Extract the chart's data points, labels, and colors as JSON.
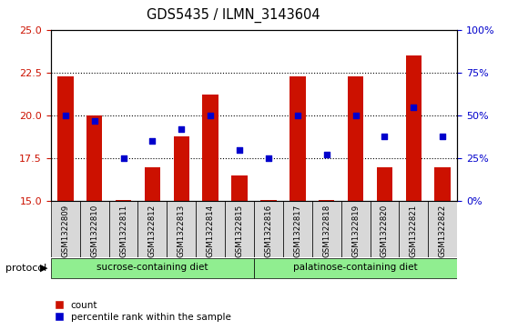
{
  "title": "GDS5435 / ILMN_3143604",
  "samples": [
    "GSM1322809",
    "GSM1322810",
    "GSM1322811",
    "GSM1322812",
    "GSM1322813",
    "GSM1322814",
    "GSM1322815",
    "GSM1322816",
    "GSM1322817",
    "GSM1322818",
    "GSM1322819",
    "GSM1322820",
    "GSM1322821",
    "GSM1322822"
  ],
  "count": [
    22.3,
    20.0,
    15.1,
    17.0,
    18.8,
    21.2,
    16.5,
    15.1,
    22.3,
    15.1,
    22.3,
    17.0,
    23.5,
    17.0
  ],
  "percentile": [
    50,
    47,
    25,
    35,
    42,
    50,
    30,
    25,
    50,
    27,
    50,
    38,
    55,
    38
  ],
  "bar_color": "#cc1100",
  "dot_color": "#0000cc",
  "ylim_left": [
    15,
    25
  ],
  "ylim_right": [
    0,
    100
  ],
  "yticks_left": [
    15,
    17.5,
    20,
    22.5,
    25
  ],
  "yticks_right": [
    0,
    25,
    50,
    75,
    100
  ],
  "ytick_labels_right": [
    "0%",
    "25%",
    "50%",
    "75%",
    "100%"
  ],
  "sucrose_count": 7,
  "grid_yticks": [
    17.5,
    20,
    22.5
  ],
  "plot_bg": "#ffffff",
  "tick_label_bg": "#d8d8d8",
  "proto_color": "#90ee90"
}
